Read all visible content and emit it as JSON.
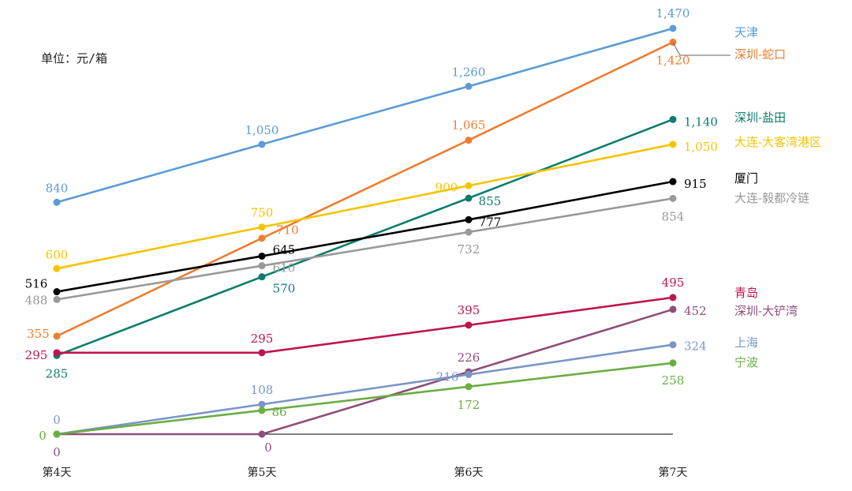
{
  "unit_label": "单位：元/箱",
  "chart_data": {
    "type": "line",
    "x": [
      "第4天",
      "第5天",
      "第6天",
      "第7天"
    ],
    "ylim": [
      0,
      1470
    ],
    "grid": false,
    "legend": "right, labels at line ends",
    "series": [
      {
        "name": "天津",
        "color": "#5b9bd5",
        "values": [
          840,
          1050,
          1260,
          1470
        ]
      },
      {
        "name": "深圳-蛇口",
        "color": "#ed7d31",
        "values": [
          355,
          710,
          1065,
          1420
        ]
      },
      {
        "name": "深圳-盐田",
        "color": "#0e7c6b",
        "values": [
          285,
          570,
          855,
          1140
        ]
      },
      {
        "name": "大连-大客湾港区",
        "color": "#f5c400",
        "values": [
          600,
          750,
          900,
          1050
        ]
      },
      {
        "name": "厦门",
        "color": "#000000",
        "values": [
          516,
          645,
          777,
          915
        ]
      },
      {
        "name": "大连-毅都冷链",
        "color": "#999999",
        "values": [
          488,
          610,
          732,
          854
        ]
      },
      {
        "name": "青岛",
        "color": "#c0144c",
        "values": [
          295,
          295,
          395,
          495
        ]
      },
      {
        "name": "深圳-大铲湾",
        "color": "#8e4f78",
        "values": [
          0,
          0,
          226,
          452
        ]
      },
      {
        "name": "上海",
        "color": "#7b96c6",
        "values": [
          0,
          108,
          216,
          324
        ]
      },
      {
        "name": "宁波",
        "color": "#6aae42",
        "values": [
          0,
          86,
          172,
          258
        ]
      }
    ]
  }
}
